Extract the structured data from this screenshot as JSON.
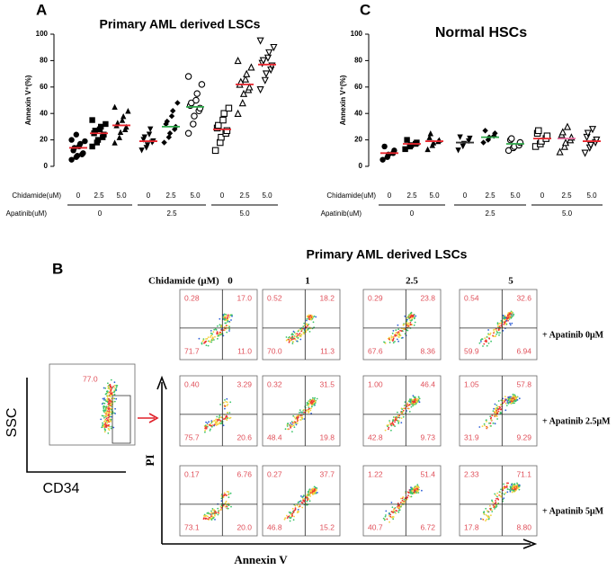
{
  "chart_data": [
    {
      "type": "dotplot",
      "letter": "A",
      "title": "Primary AML derived LSCs",
      "ylabel": "Annexin V⁺(%)",
      "ylim": [
        0,
        100
      ],
      "yticks": [
        0,
        20,
        40,
        60,
        80,
        100
      ],
      "row_labels": [
        "Chidamide(uM)",
        "Apatinib(uM)"
      ],
      "chidamide": [
        "0",
        "2.5",
        "5.0",
        "0",
        "2.5",
        "5.0",
        "0",
        "2.5",
        "5.0"
      ],
      "apatinib": [
        "0",
        "2.5",
        "5.0"
      ],
      "markers": [
        "circle",
        "square",
        "triangle",
        "triangle-down",
        "diamond",
        "circle-open",
        "square-open",
        "triangle-open",
        "triangle-down-open"
      ],
      "groups": [
        {
          "mean": 14,
          "mean_color": "#e8262e",
          "points": [
            5,
            7,
            8,
            9,
            10,
            12,
            14,
            15,
            17,
            19,
            20,
            24
          ]
        },
        {
          "mean": 25,
          "mean_color": "#e8262e",
          "points": [
            15,
            18,
            20,
            22,
            24,
            25,
            27,
            28,
            30,
            32,
            35
          ]
        },
        {
          "mean": 31,
          "mean_color": "#e8262e",
          "points": [
            18,
            22,
            26,
            28,
            30,
            31,
            33,
            35,
            38,
            42,
            45
          ]
        },
        {
          "mean": 19,
          "mean_color": "#e8262e",
          "points": [
            12,
            14,
            16,
            18,
            19,
            20,
            22,
            24,
            28
          ]
        },
        {
          "mean": 30,
          "mean_color": "#2fa84a",
          "points": [
            18,
            22,
            25,
            28,
            30,
            32,
            34,
            38,
            42,
            48
          ]
        },
        {
          "mean": 45,
          "mean_color": "#2fa84a",
          "points": [
            25,
            32,
            38,
            42,
            44,
            46,
            48,
            50,
            55,
            62,
            68
          ]
        },
        {
          "mean": 28,
          "mean_color": "#e8262e",
          "points": [
            12,
            18,
            22,
            25,
            27,
            29,
            31,
            35,
            40,
            44
          ]
        },
        {
          "mean": 62,
          "mean_color": "#e8262e",
          "points": [
            40,
            48,
            55,
            58,
            60,
            62,
            64,
            66,
            70,
            75,
            80
          ]
        },
        {
          "mean": 77,
          "mean_color": "#e8262e",
          "points": [
            58,
            65,
            70,
            73,
            76,
            78,
            80,
            82,
            86,
            90,
            95
          ]
        }
      ]
    },
    {
      "type": "dotplot",
      "letter": "C",
      "title": "Normal HSCs",
      "ylabel": "Annexin V⁺(%)",
      "ylim": [
        0,
        100
      ],
      "yticks": [
        0,
        20,
        40,
        60,
        80,
        100
      ],
      "row_labels": [
        "Chidamide(uM)",
        "Apatinib(uM)"
      ],
      "chidamide": [
        "0",
        "2.5",
        "5.0",
        "0",
        "2.5",
        "5.0",
        "0",
        "2.5",
        "5.0"
      ],
      "apatinib": [
        "0",
        "2.5",
        "5.0"
      ],
      "markers": [
        "circle",
        "square",
        "triangle",
        "triangle-down",
        "diamond",
        "circle-open",
        "square-open",
        "triangle-open",
        "triangle-down-open"
      ],
      "groups": [
        {
          "mean": 10,
          "mean_color": "#e8262e",
          "points": [
            5,
            7,
            9,
            10,
            12,
            15
          ]
        },
        {
          "mean": 17,
          "mean_color": "#e8262e",
          "points": [
            13,
            15,
            16,
            17,
            18,
            20
          ]
        },
        {
          "mean": 19,
          "mean_color": "#e8262e",
          "points": [
            13,
            16,
            18,
            19,
            20,
            22,
            25
          ]
        },
        {
          "mean": 18,
          "mean_color": "#333333",
          "points": [
            12,
            15,
            17,
            19,
            21,
            22
          ]
        },
        {
          "mean": 22,
          "mean_color": "#2fa84a",
          "points": [
            18,
            20,
            22,
            23,
            25,
            27
          ]
        },
        {
          "mean": 17,
          "mean_color": "#2fa84a",
          "points": [
            12,
            14,
            15,
            16,
            18,
            20,
            21
          ]
        },
        {
          "mean": 21,
          "mean_color": "#e8262e",
          "points": [
            15,
            17,
            19,
            21,
            23,
            25,
            27
          ]
        },
        {
          "mean": 21,
          "mean_color": "#e86fa0",
          "points": [
            11,
            15,
            18,
            20,
            22,
            24,
            26,
            30
          ]
        },
        {
          "mean": 19,
          "mean_color": "#e8262e",
          "points": [
            10,
            14,
            16,
            18,
            20,
            22,
            25,
            28
          ]
        }
      ]
    }
  ],
  "panel_b": {
    "letter": "B",
    "title": "Primary AML derived LSCs",
    "column_header": "Chidamide (μM)",
    "columns": [
      "0",
      "1",
      "2.5",
      "5"
    ],
    "rows": [
      "+ Apatinib 0μM",
      "+ Apatinib 2.5μM",
      "+ Apatinib 5μM"
    ],
    "plots": [
      [
        [
          "0.28",
          "17.0",
          "71.7",
          "11.0"
        ],
        [
          "0.52",
          "18.2",
          "70.0",
          "11.3"
        ],
        [
          "0.29",
          "23.8",
          "67.6",
          "8.36"
        ],
        [
          "0.54",
          "32.6",
          "59.9",
          "6.94"
        ]
      ],
      [
        [
          "0.40",
          "3.29",
          "75.7",
          "20.6"
        ],
        [
          "0.32",
          "31.5",
          "48.4",
          "19.8"
        ],
        [
          "1.00",
          "46.4",
          "42.8",
          "9.73"
        ],
        [
          "1.05",
          "57.8",
          "31.9",
          "9.29"
        ]
      ],
      [
        [
          "0.17",
          "6.76",
          "73.1",
          "20.0"
        ],
        [
          "0.27",
          "37.7",
          "46.8",
          "15.2"
        ],
        [
          "1.22",
          "51.4",
          "40.7",
          "6.72"
        ],
        [
          "2.33",
          "71.1",
          "17.8",
          "8.80"
        ]
      ]
    ],
    "x_axis": "Annexin V",
    "y_axis": "PI",
    "gate": {
      "value": "77.0",
      "y_axis": "SSC",
      "x_axis": "CD34"
    }
  }
}
